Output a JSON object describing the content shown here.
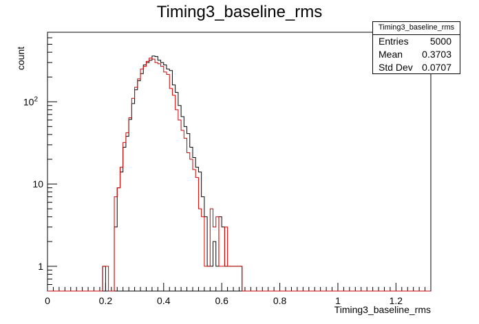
{
  "chart_data": {
    "type": "histogram",
    "title": "Timing3_baseline_rms",
    "xlabel": "Timing3_baseline_rms",
    "ylabel": "count",
    "xlim": [
      0,
      1.32
    ],
    "ylim": [
      0.5,
      700
    ],
    "yscale": "log",
    "bin_width": 0.01,
    "x_ticks": [
      0,
      0.2,
      0.4,
      0.6,
      0.8,
      1,
      1.2
    ],
    "x_tick_labels": [
      "0",
      "0.2",
      "0.4",
      "0.6",
      "0.8",
      "1",
      "1.2"
    ],
    "y_ticks": [
      1,
      10,
      100
    ],
    "y_tick_labels": [
      "1",
      "10",
      "10^2"
    ],
    "series": [
      {
        "color": "#000000",
        "x": [
          0.19,
          0.23,
          0.24,
          0.25,
          0.26,
          0.27,
          0.28,
          0.29,
          0.3,
          0.31,
          0.32,
          0.33,
          0.34,
          0.35,
          0.36,
          0.37,
          0.38,
          0.39,
          0.4,
          0.41,
          0.42,
          0.43,
          0.44,
          0.45,
          0.46,
          0.47,
          0.48,
          0.49,
          0.5,
          0.51,
          0.52,
          0.53,
          0.54,
          0.55,
          0.56,
          0.57,
          0.58,
          0.59,
          0.6,
          0.61,
          0.62,
          0.63,
          0.64,
          0.65,
          0.66
        ],
        "values": [
          1,
          3,
          9,
          14,
          28,
          38,
          61,
          95,
          140,
          180,
          220,
          280,
          300,
          320,
          360,
          355,
          320,
          300,
          280,
          250,
          240,
          160,
          130,
          90,
          66,
          50,
          41,
          28,
          21,
          16,
          14,
          7,
          4,
          1,
          1,
          2,
          1,
          4,
          3,
          1,
          1,
          1,
          1,
          1,
          1
        ]
      },
      {
        "color": "#cc0000",
        "x": [
          0.19,
          0.2,
          0.23,
          0.24,
          0.25,
          0.26,
          0.27,
          0.28,
          0.29,
          0.3,
          0.31,
          0.32,
          0.33,
          0.34,
          0.35,
          0.36,
          0.37,
          0.38,
          0.39,
          0.4,
          0.41,
          0.42,
          0.43,
          0.44,
          0.45,
          0.46,
          0.47,
          0.48,
          0.49,
          0.5,
          0.51,
          0.52,
          0.53,
          0.54,
          0.55,
          0.56,
          0.57,
          0.58,
          0.59,
          0.6,
          0.61,
          0.62,
          0.63,
          0.64,
          0.65,
          0.66
        ],
        "values": [
          1,
          1,
          7,
          9,
          16,
          32,
          42,
          64,
          110,
          150,
          190,
          250,
          270,
          310,
          340,
          330,
          300,
          290,
          270,
          230,
          215,
          145,
          120,
          80,
          60,
          45,
          36,
          24,
          20,
          15,
          12,
          5,
          4,
          1,
          1,
          5,
          3,
          4,
          1,
          1,
          3,
          1,
          1,
          1,
          1,
          1
        ]
      }
    ],
    "stats": {
      "title": "Timing3_baseline_rms",
      "rows": [
        {
          "label": "Entries",
          "value": "5000"
        },
        {
          "label": "Mean",
          "value": "0.3703"
        },
        {
          "label": "Std Dev",
          "value": "0.0707"
        }
      ]
    }
  }
}
